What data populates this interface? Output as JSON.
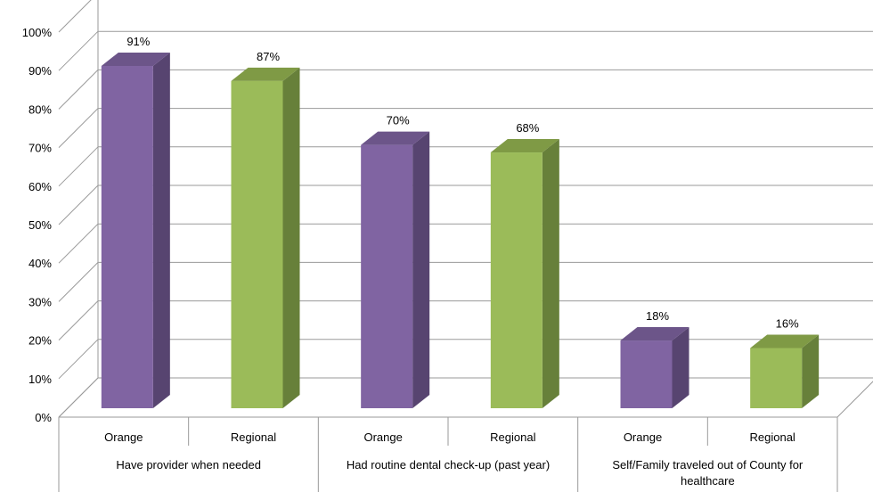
{
  "chart_data": {
    "type": "bar",
    "style": "3d-clustered-column",
    "groups": [
      {
        "label_lines": [
          "Have provider when needed"
        ],
        "categories": [
          "Orange",
          "Regional"
        ],
        "values": [
          91,
          87
        ]
      },
      {
        "label_lines": [
          "Had routine dental check-up (past year)"
        ],
        "categories": [
          "Orange",
          "Regional"
        ],
        "values": [
          70,
          68
        ]
      },
      {
        "label_lines": [
          "Self/Family traveled out of County for",
          "healthcare"
        ],
        "categories": [
          "Orange",
          "Regional"
        ],
        "values": [
          18,
          16
        ]
      }
    ],
    "data_labels": [
      "91%",
      "87%",
      "70%",
      "68%",
      "18%",
      "16%"
    ],
    "y_ticks": [
      "0%",
      "10%",
      "20%",
      "30%",
      "40%",
      "50%",
      "60%",
      "70%",
      "80%",
      "90%",
      "100%"
    ],
    "ylim": [
      0,
      100
    ],
    "y_unit": "%",
    "grid": true,
    "legend": "none",
    "colors": {
      "Orange": {
        "front": "#8064a2",
        "side": "#574470",
        "top": "#6c5589"
      },
      "Regional": {
        "front": "#9bbb59",
        "side": "#67803a",
        "top": "#7f9a45"
      }
    }
  }
}
